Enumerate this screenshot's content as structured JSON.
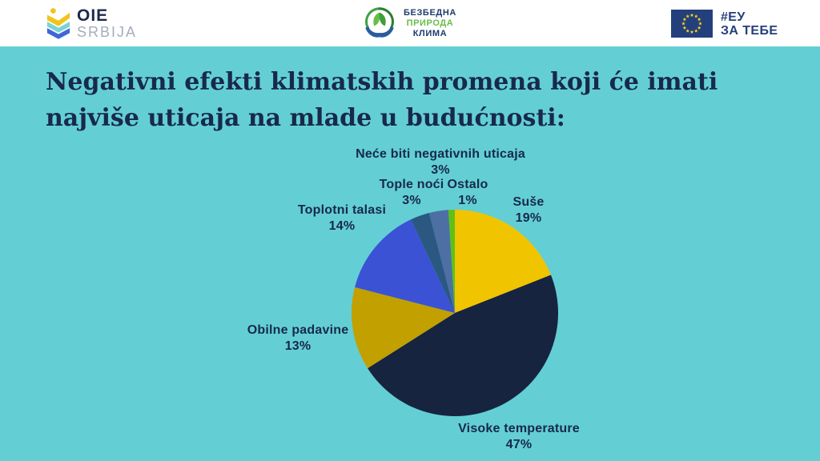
{
  "header": {
    "oie_logo": {
      "line1": "OIE",
      "line2": "SRBIJA"
    },
    "center_logo": {
      "line1": "БЕЗБЕДНА",
      "line2": "ПРИРОДА",
      "line3": "КЛИМА"
    },
    "eu_logo": {
      "line1": "#ЕУ",
      "line2": "ЗА ТЕБЕ"
    }
  },
  "title_line1": "Negativni efekti klimatskih promena koji će imati",
  "title_line2": "najviše uticaja na mlade u budućnosti:",
  "chart_data": {
    "type": "pie",
    "title": "Negativni efekti klimatskih promena koji će imati najviše uticaja na mlade u budućnosti",
    "direction": "clockwise",
    "start_angle_deg": 0,
    "legend": "none",
    "segments": [
      {
        "label": "Suše",
        "value": 19,
        "pct_label": "19%",
        "color": "#F1C400"
      },
      {
        "label": "Visoke temperature",
        "value": 47,
        "pct_label": "47%",
        "color": "#16243F"
      },
      {
        "label": "Obilne padavine",
        "value": 13,
        "pct_label": "13%",
        "color": "#C2A000"
      },
      {
        "label": "Toplotni talasi",
        "value": 14,
        "pct_label": "14%",
        "color": "#3B52D5"
      },
      {
        "label": "Tople noći",
        "value": 3,
        "pct_label": "3%",
        "color": "#2A5880"
      },
      {
        "label": "Neće biti negativnih uticaja",
        "value": 3,
        "pct_label": "3%",
        "color": "#4E6FA3"
      },
      {
        "label": "Ostalo",
        "value": 1,
        "pct_label": "1%",
        "color": "#5EC117"
      }
    ]
  },
  "colors": {
    "background": "#63CFD4",
    "header_bg": "#FFFFFF",
    "title_text": "#18294C",
    "label_text": "#17294A",
    "eu_flag_bg": "#24407C",
    "eu_star": "#FFD617"
  }
}
